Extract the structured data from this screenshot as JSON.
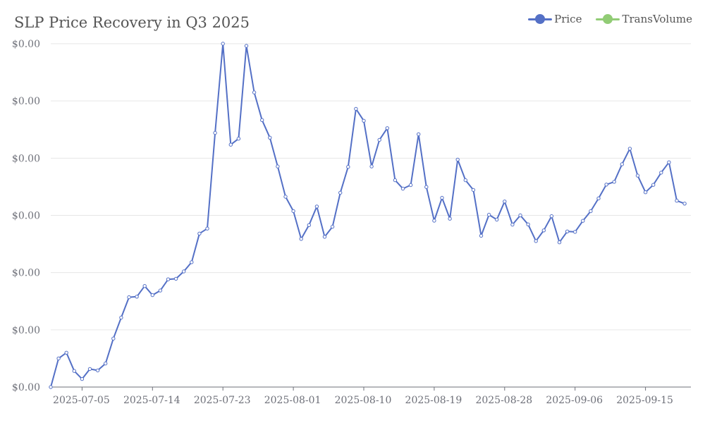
{
  "chart_data": {
    "type": "line",
    "title": "SLP Price Recovery in Q3 2025",
    "legend": {
      "position": "top-right",
      "items": [
        {
          "name": "Price",
          "color": "#5470c6"
        },
        {
          "name": "TransVolume",
          "color": "#91cc75"
        }
      ]
    },
    "y_tick_labels": [
      "$0.00",
      "$0.00",
      "$0.00",
      "$0.00",
      "$0.00",
      "$0.00",
      "$0.00"
    ],
    "x_tick_labels": [
      "2025-07-05",
      "2025-07-14",
      "2025-07-23",
      "2025-08-01",
      "2025-08-10",
      "2025-08-19",
      "2025-08-28",
      "2025-09-06",
      "2025-09-15"
    ],
    "x_start": "2025-07-01",
    "grid": true,
    "series": [
      {
        "name": "Price",
        "color": "#5470c6",
        "values": [
          0.0,
          0.5,
          0.6,
          0.281,
          0.14,
          0.315,
          0.291,
          0.411,
          0.848,
          1.214,
          1.569,
          1.58,
          1.765,
          1.607,
          1.687,
          1.883,
          1.893,
          2.021,
          2.182,
          2.682,
          2.769,
          4.442,
          6.0,
          4.236,
          4.34,
          5.962,
          5.149,
          4.666,
          4.358,
          3.855,
          3.327,
          3.075,
          2.588,
          2.83,
          3.155,
          2.626,
          2.802,
          3.395,
          3.848,
          4.861,
          4.654,
          3.855,
          4.32,
          4.524,
          3.615,
          3.467,
          3.53,
          4.418,
          3.496,
          2.907,
          3.307,
          2.942,
          3.974,
          3.615,
          3.445,
          2.644,
          3.011,
          2.926,
          3.243,
          2.839,
          3.0,
          2.842,
          2.552,
          2.737,
          2.987,
          2.529,
          2.719,
          2.712,
          2.905,
          3.074,
          3.297,
          3.539,
          3.587,
          3.893,
          4.165,
          3.695,
          3.404,
          3.534,
          3.747,
          3.928,
          3.256,
          3.206
        ]
      },
      {
        "name": "TransVolume",
        "color": "#91cc75",
        "values": []
      }
    ]
  }
}
